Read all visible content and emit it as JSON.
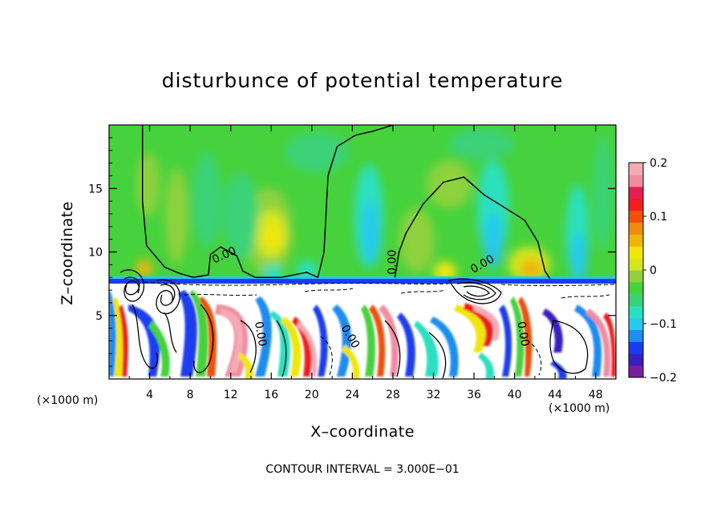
{
  "chart_data": {
    "type": "heatmap",
    "title": "disturbunce of potential temperature",
    "xlabel": "X–coordinate",
    "ylabel": "Z–coordinate",
    "x_unit_label": "(×1000 m)",
    "x_unit_label_right": "(×1000 m)",
    "contour_note": "CONTOUR INTERVAL = 3.000E−01",
    "xlim": [
      0,
      50
    ],
    "ylim": [
      0,
      20
    ],
    "x_ticks": [
      4,
      8,
      12,
      16,
      20,
      24,
      28,
      32,
      36,
      40,
      44,
      48
    ],
    "x_tick_labels": [
      "4",
      "8",
      "12",
      "16",
      "20",
      "24",
      "28",
      "32",
      "36",
      "40",
      "44",
      "48"
    ],
    "y_ticks": [
      5,
      10,
      15
    ],
    "y_tick_labels": [
      "5",
      "10",
      "15"
    ],
    "colorbar": {
      "range": [
        -0.2,
        0.2
      ],
      "tick_values": [
        0.2,
        0.1,
        0,
        -0.1,
        -0.2
      ],
      "tick_labels": [
        "0.2",
        "0.1",
        "0",
        "−0.1",
        "−0.2"
      ],
      "colors": [
        "#7a1fa0",
        "#3a1fc0",
        "#1a3cf0",
        "#1f8cf0",
        "#28c8f0",
        "#2ae0c0",
        "#3ad278",
        "#46d23c",
        "#8ed23c",
        "#d6e61e",
        "#f0e60a",
        "#f0b40a",
        "#f08c0a",
        "#f0500a",
        "#f01e1e",
        "#e61e50",
        "#f08ca0",
        "#f5aab4"
      ]
    },
    "contour_labels": [
      {
        "text": "0.00",
        "x": 11.5,
        "z": 9.5,
        "angle": 25
      },
      {
        "text": "0.00",
        "x": 28.3,
        "z": 9.2,
        "angle": 90
      },
      {
        "text": "0.00",
        "x": 37.0,
        "z": 8.8,
        "angle": 30
      },
      {
        "text": "0.00",
        "x": 14.6,
        "z": 3.5,
        "angle": -80
      },
      {
        "text": "0.00",
        "x": 23.5,
        "z": 3.2,
        "angle": -60
      },
      {
        "text": "0.00",
        "x": 40.5,
        "z": 3.5,
        "angle": -80
      }
    ],
    "zero_contour_upper": [
      [
        3.3,
        20
      ],
      [
        3.3,
        14
      ],
      [
        3.7,
        10.5
      ],
      [
        5.5,
        8.8
      ],
      [
        7,
        8.3
      ],
      [
        8.3,
        8.0
      ],
      [
        9.8,
        8.2
      ],
      [
        10,
        9.8
      ],
      [
        11,
        10.4
      ],
      [
        12.6,
        9.7
      ],
      [
        13.2,
        8.5
      ],
      [
        14.4,
        8.0
      ],
      [
        17,
        8.0
      ],
      [
        19.5,
        8.4
      ],
      [
        20.6,
        8.0
      ],
      [
        21.2,
        10
      ],
      [
        21.6,
        16
      ],
      [
        22.5,
        18.3
      ],
      [
        24.3,
        19.2
      ],
      [
        26,
        19.5
      ],
      [
        28,
        20
      ]
    ],
    "zero_contour_upper_2": [
      [
        28.2,
        8.0
      ],
      [
        28.6,
        10
      ],
      [
        29.3,
        11.5
      ],
      [
        31,
        13.8
      ],
      [
        33,
        15.5
      ],
      [
        35,
        15.9
      ],
      [
        37,
        14.5
      ],
      [
        39,
        13.5
      ],
      [
        41,
        12.5
      ],
      [
        42.3,
        10.8
      ],
      [
        43,
        8.5
      ],
      [
        43.5,
        7.9
      ]
    ]
  },
  "colors": {
    "background": "#ffffff",
    "stable_layer": "#1a3cf0",
    "upper_field": "#46d23c"
  }
}
